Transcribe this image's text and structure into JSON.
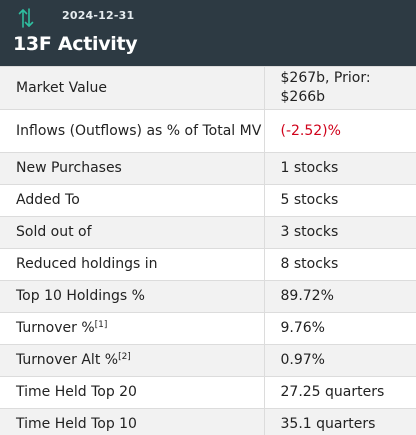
{
  "header": {
    "date": "2024-12-31",
    "title": "13F Activity",
    "icon": "swap-vertical-arrows-icon",
    "icon_color": "#2fbfa0",
    "background": "#2d3a43"
  },
  "rows": [
    {
      "label": "Market Value",
      "value": "$267b, Prior: $266b"
    },
    {
      "label": "Inflows (Outflows) as % of Total MV",
      "value": "(-2.52)%",
      "value_color": "#d0021b"
    },
    {
      "label": "New Purchases",
      "value": "1 stocks"
    },
    {
      "label": "Added To",
      "value": "5 stocks"
    },
    {
      "label": "Sold out of",
      "value": "3 stocks"
    },
    {
      "label": "Reduced holdings in",
      "value": "8 stocks"
    },
    {
      "label": "Top 10 Holdings %",
      "value": "89.72%"
    },
    {
      "label": "Turnover %",
      "footnote": "[1]",
      "value": "9.76%"
    },
    {
      "label": "Turnover Alt %",
      "footnote": "[2]",
      "value": "0.97%"
    },
    {
      "label": "Time Held Top 20",
      "value": "27.25 quarters"
    },
    {
      "label": "Time Held Top 10",
      "value": "35.1 quarters"
    }
  ]
}
